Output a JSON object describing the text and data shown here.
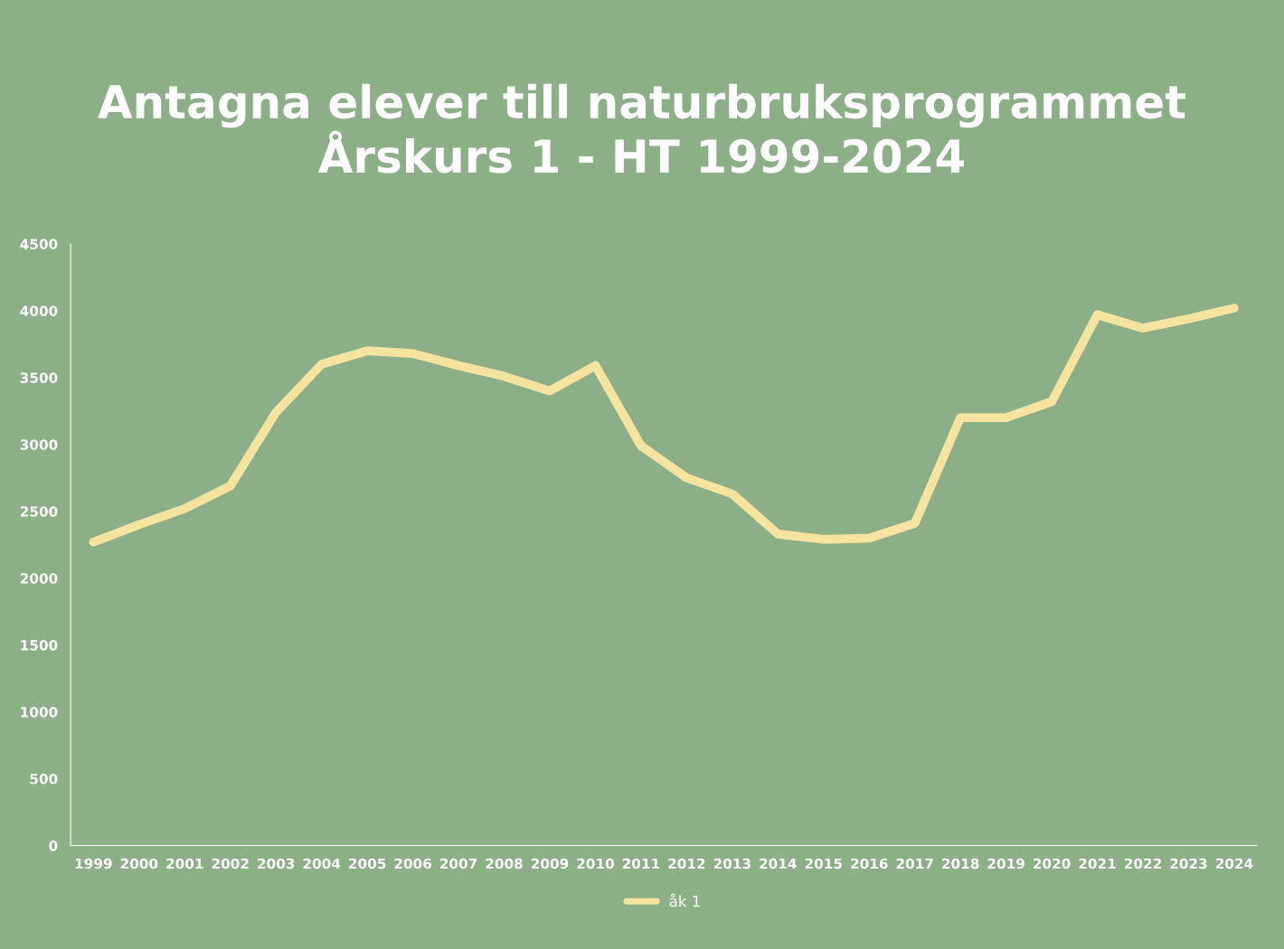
{
  "chart_data": {
    "type": "line",
    "title": "Antagna elever till naturbruksprogrammet\nÅrskurs 1 - HT 1999-2024",
    "categories": [
      "1999",
      "2000",
      "2001",
      "2002",
      "2003",
      "2004",
      "2005",
      "2006",
      "2007",
      "2008",
      "2009",
      "2010",
      "2011",
      "2012",
      "2013",
      "2014",
      "2015",
      "2016",
      "2017",
      "2018",
      "2019",
      "2020",
      "2021",
      "2022",
      "2023",
      "2024"
    ],
    "series": [
      {
        "name": "åk 1",
        "color": "#f5e3a0",
        "values": [
          2270,
          2400,
          2520,
          2690,
          3240,
          3600,
          3700,
          3680,
          3590,
          3510,
          3400,
          3590,
          2990,
          2750,
          2630,
          2330,
          2290,
          2300,
          2410,
          3200,
          3200,
          3320,
          3970,
          3870,
          3940,
          4020
        ]
      }
    ],
    "ylim": [
      0,
      4500
    ],
    "yticks": [
      0,
      500,
      1000,
      1500,
      2000,
      2500,
      3000,
      3500,
      4000,
      4500
    ],
    "grid": false,
    "legend": "bottom",
    "marker": "none",
    "line_style": "solid"
  }
}
